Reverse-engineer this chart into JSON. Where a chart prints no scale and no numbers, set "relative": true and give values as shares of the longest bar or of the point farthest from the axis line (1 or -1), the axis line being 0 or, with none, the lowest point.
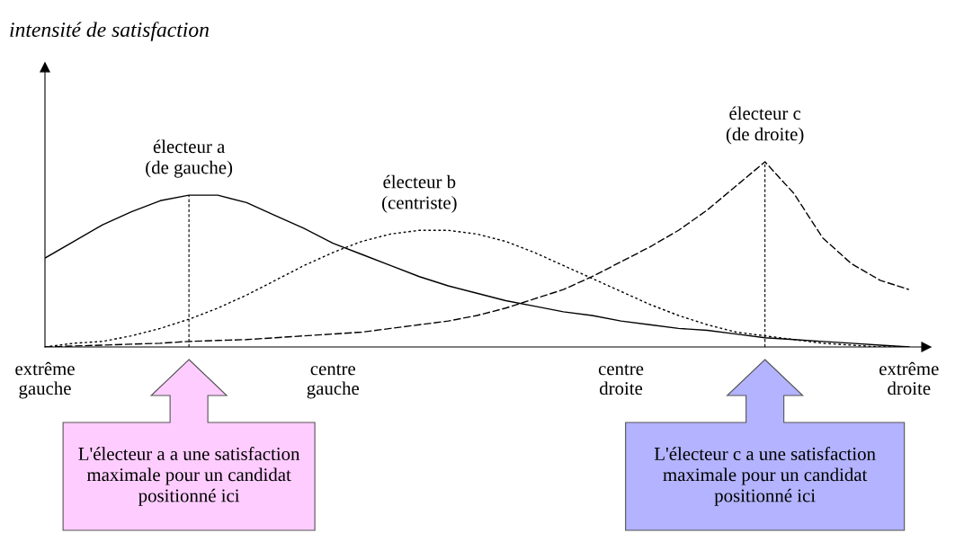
{
  "chart_data": {
    "type": "line",
    "relative": true,
    "categories": [
      "extrême\ngauche",
      null,
      null,
      null,
      null,
      null,
      null,
      null,
      null,
      null,
      "centre\ngauche",
      null,
      null,
      null,
      null,
      null,
      null,
      null,
      null,
      null,
      "centre\ndroite",
      null,
      null,
      null,
      null,
      null,
      null,
      null,
      null,
      null,
      "extrême\ndroite"
    ],
    "tick_labels": "x",
    "legend": false,
    "marker": "none",
    "series": [
      {
        "color": "#000000",
        "line_style": "solid",
        "values": [
          0.48,
          0.57,
          0.66,
          0.73,
          0.79,
          0.82,
          0.82,
          0.78,
          0.71,
          0.64,
          0.56,
          0.5,
          0.44,
          0.38,
          0.33,
          0.29,
          0.25,
          0.22,
          0.19,
          0.17,
          0.14,
          0.12,
          0.1,
          0.09,
          0.07,
          0.05,
          0.04,
          0.03,
          0.02,
          0.01,
          0.0
        ]
      },
      {
        "color": "#000000",
        "line_style": "dotted",
        "values": [
          0.0,
          0.02,
          0.03,
          0.06,
          0.1,
          0.15,
          0.21,
          0.28,
          0.36,
          0.44,
          0.51,
          0.57,
          0.61,
          0.63,
          0.63,
          0.61,
          0.57,
          0.51,
          0.44,
          0.37,
          0.3,
          0.23,
          0.17,
          0.12,
          0.08,
          0.06,
          0.04,
          0.02,
          0.01,
          0.0,
          0.0
        ]
      },
      {
        "color": "#000000",
        "line_style": "dashed",
        "values": [
          0.0,
          0.005,
          0.01,
          0.015,
          0.02,
          0.03,
          0.035,
          0.04,
          0.05,
          0.06,
          0.07,
          0.08,
          0.1,
          0.12,
          0.14,
          0.17,
          0.21,
          0.26,
          0.31,
          0.38,
          0.46,
          0.54,
          0.63,
          0.74,
          0.87,
          1.0,
          0.83,
          0.59,
          0.45,
          0.36,
          0.31
        ]
      }
    ],
    "annotations": [
      "intensité de satisfaction",
      "électeur a\n(de gauche)",
      "électeur b\n(centriste)",
      "électeur c\n(de droite)",
      "L'électeur a a une satisfaction\nmaximale pour un candidat\npositionné ici",
      "L'électeur c a une satisfaction\nmaximale pour un candidat\npositionné ici"
    ]
  }
}
